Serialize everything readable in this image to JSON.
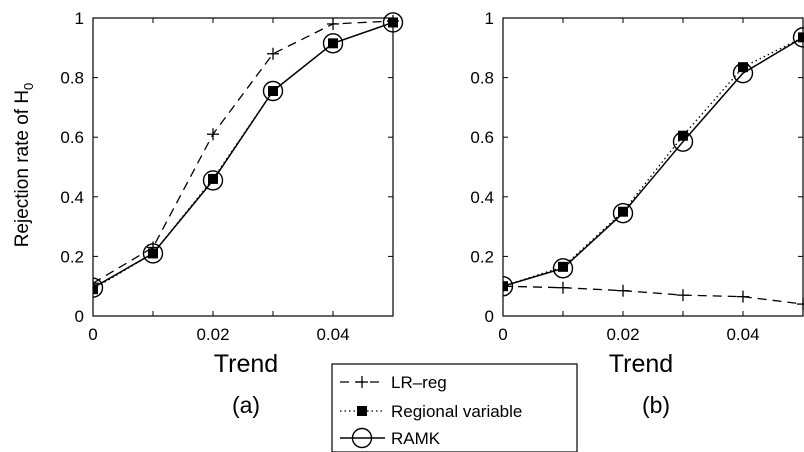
{
  "chart_data": [
    {
      "type": "line",
      "panel_label": "(a)",
      "xlabel": "Trend",
      "ylabel_main": "Rejection rate of H",
      "ylabel_sub": "0",
      "xlim": [
        0,
        0.05
      ],
      "ylim": [
        0,
        1
      ],
      "xticks": [
        0,
        0.02,
        0.04
      ],
      "xtick_labels": [
        "0",
        "0.02",
        "0.04"
      ],
      "yticks": [
        0,
        0.2,
        0.4,
        0.6,
        0.8,
        1
      ],
      "ytick_labels": [
        "0",
        "0.2",
        "0.4",
        "0.6",
        "0.8",
        "1"
      ],
      "x": [
        0,
        0.01,
        0.02,
        0.03,
        0.04,
        0.05
      ],
      "series": [
        {
          "name": "LR–reg",
          "style": "dashed-plus",
          "values": [
            0.11,
            0.23,
            0.61,
            0.88,
            0.98,
            0.99
          ]
        },
        {
          "name": "Regional variable",
          "style": "dotted-square",
          "values": [
            0.09,
            0.21,
            0.46,
            0.755,
            0.915,
            0.985
          ]
        },
        {
          "name": "RAMK",
          "style": "solid-circle",
          "values": [
            0.095,
            0.21,
            0.455,
            0.755,
            0.915,
            0.985
          ]
        }
      ]
    },
    {
      "type": "line",
      "panel_label": "(b)",
      "xlabel": "Trend",
      "xlim": [
        0,
        0.05
      ],
      "ylim": [
        0,
        1
      ],
      "xticks": [
        0,
        0.02,
        0.04
      ],
      "xtick_labels": [
        "0",
        "0.02",
        "0.04"
      ],
      "yticks": [
        0,
        0.2,
        0.4,
        0.6,
        0.8,
        1
      ],
      "ytick_labels": [
        "0",
        "0.2",
        "0.4",
        "0.6",
        "0.8",
        "1"
      ],
      "x": [
        0,
        0.01,
        0.02,
        0.03,
        0.04,
        0.05
      ],
      "series": [
        {
          "name": "LR–reg",
          "style": "dashed-plus",
          "values": [
            0.1,
            0.095,
            0.085,
            0.07,
            0.065,
            0.04
          ]
        },
        {
          "name": "Regional variable",
          "style": "dotted-square",
          "values": [
            0.1,
            0.165,
            0.35,
            0.605,
            0.835,
            0.935
          ]
        },
        {
          "name": "RAMK",
          "style": "solid-circle",
          "values": [
            0.1,
            0.16,
            0.345,
            0.585,
            0.815,
            0.935
          ]
        }
      ]
    }
  ],
  "legend": {
    "placement": "bottom-center",
    "entries": [
      "LR–reg",
      "Regional variable",
      "RAMK"
    ]
  }
}
